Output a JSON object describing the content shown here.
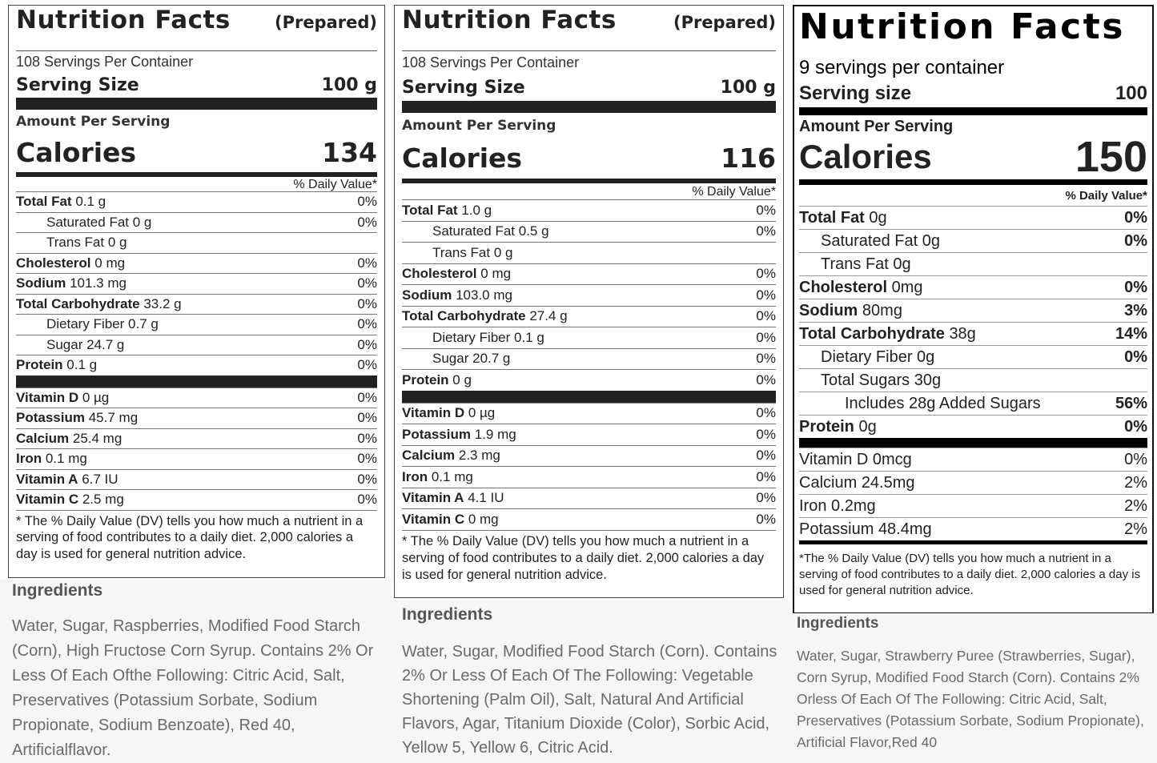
{
  "panels": [
    {
      "title": "Nutrition Facts",
      "qualifier": "(Prepared)",
      "servings": "108 Servings Per Container",
      "serving_size_label": "Serving Size",
      "serving_size_value": "100 g",
      "amount_per_serving": "Amount Per Serving",
      "calories_label": "Calories",
      "calories_value": 134,
      "dv_header": "% Daily Value*",
      "rows": [
        {
          "name": "Total Fat",
          "amount": "0.1 g",
          "dv": "0%",
          "sub": [
            {
              "name": "Saturated Fat",
              "amount": "0 g",
              "dv": "0%"
            },
            {
              "name": "Trans Fat",
              "amount": "0 g"
            }
          ]
        },
        {
          "name": "Cholesterol",
          "amount": "0 mg",
          "dv": "0%"
        },
        {
          "name": "Sodium",
          "amount": "101.3 mg",
          "dv": "0%"
        },
        {
          "name": "Total Carbohydrate",
          "amount": "33.2 g",
          "dv": "0%",
          "sub": [
            {
              "name": "Dietary Fiber",
              "amount": "0.7 g",
              "dv": "0%"
            },
            {
              "name": "Sugar",
              "amount": "24.7 g",
              "dv": "0%"
            }
          ]
        },
        {
          "name": "Protein",
          "amount": "0.1 g",
          "dv": "0%"
        }
      ],
      "vitamins": [
        {
          "name": "Vitamin D",
          "amount": "0 µg",
          "dv": "0%"
        },
        {
          "name": "Potassium",
          "amount": "45.7 mg",
          "dv": "0%"
        },
        {
          "name": "Calcium",
          "amount": "25.4 mg",
          "dv": "0%"
        },
        {
          "name": "Iron",
          "amount": "0.1 mg",
          "dv": "0%"
        },
        {
          "name": "Vitamin A",
          "amount": "6.7 IU",
          "dv": "0%"
        },
        {
          "name": "Vitamin C",
          "amount": "2.5 mg",
          "dv": "0%"
        }
      ],
      "footnote": "* The % Daily Value (DV) tells you how much a nutrient in a serving of food contributes to a daily diet. 2,000 calories a day is used for general nutrition advice.",
      "ingredients_heading": "Ingredients",
      "ingredients": "Water, Sugar, Raspberries, Modified Food Starch (Corn), High Fructose Corn Syrup. Contains 2% Or Less Of Each Ofthe Following: Citric Acid, Salt, Preservatives (Potassium Sorbate, Sodium Propionate, Sodium Benzoate), Red 40, Artificialflavor."
    },
    {
      "title": "Nutrition Facts",
      "qualifier": "(Prepared)",
      "servings": "108 Servings Per Container",
      "serving_size_label": "Serving Size",
      "serving_size_value": "100 g",
      "amount_per_serving": "Amount Per Serving",
      "calories_label": "Calories",
      "calories_value": 116,
      "dv_header": "% Daily Value*",
      "rows": [
        {
          "name": "Total Fat",
          "amount": "1.0 g",
          "dv": "0%",
          "sub": [
            {
              "name": "Saturated Fat",
              "amount": "0.5 g",
              "dv": "0%"
            },
            {
              "name": "Trans Fat",
              "amount": "0 g"
            }
          ]
        },
        {
          "name": "Cholesterol",
          "amount": "0 mg",
          "dv": "0%"
        },
        {
          "name": "Sodium",
          "amount": "103.0 mg",
          "dv": "0%"
        },
        {
          "name": "Total Carbohydrate",
          "amount": "27.4 g",
          "dv": "0%",
          "sub": [
            {
              "name": "Dietary Fiber",
              "amount": "0.1 g",
              "dv": "0%"
            },
            {
              "name": "Sugar",
              "amount": "20.7 g",
              "dv": "0%"
            }
          ]
        },
        {
          "name": "Protein",
          "amount": "0 g",
          "dv": "0%"
        }
      ],
      "vitamins": [
        {
          "name": "Vitamin D",
          "amount": "0 µg",
          "dv": "0%"
        },
        {
          "name": "Potassium",
          "amount": "1.9 mg",
          "dv": "0%"
        },
        {
          "name": "Calcium",
          "amount": "2.3 mg",
          "dv": "0%"
        },
        {
          "name": "Iron",
          "amount": "0.1 mg",
          "dv": "0%"
        },
        {
          "name": "Vitamin A",
          "amount": "4.1 IU",
          "dv": "0%"
        },
        {
          "name": "Vitamin C",
          "amount": "0 mg",
          "dv": "0%"
        }
      ],
      "footnote": "* The % Daily Value (DV) tells you how much a nutrient in a serving of food contributes to a daily diet. 2,000 calories a day is used for general nutrition advice.",
      "ingredients_heading": "Ingredients",
      "ingredients": "Water, Sugar, Modified Food Starch (Corn). Contains 2% Or Less Of Each Of The Following: Vegetable Shortening (Palm Oil), Salt, Natural And Artificial Flavors, Agar, Titanium Dioxide (Color), Sorbic Acid, Yellow 5, Yellow 6, Citric Acid."
    },
    {
      "title": "Nutrition Facts",
      "servings": "9 servings per container",
      "serving_size_label": "Serving size",
      "serving_size_value": "100",
      "amount_per_serving": "Amount Per Serving",
      "calories_label": "Calories",
      "calories_value": 150,
      "dv_header": "% Daily Value*",
      "rows": [
        {
          "name": "Total Fat",
          "amount": "0g",
          "dv": "0%",
          "sub": [
            {
              "name": "Saturated Fat",
              "amount": "0g",
              "dv": "0%"
            },
            {
              "name": "Trans Fat",
              "amount": "0g"
            }
          ]
        },
        {
          "name": "Cholesterol",
          "amount": "0mg",
          "dv": "0%"
        },
        {
          "name": "Sodium",
          "amount": "80mg",
          "dv": "3%"
        },
        {
          "name": "Total Carbohydrate",
          "amount": "38g",
          "dv": "14%",
          "sub": [
            {
              "name": "Dietary Fiber",
              "amount": "0g",
              "dv": "0%"
            },
            {
              "name": "Total Sugars",
              "amount": "30g",
              "sub": [
                {
                  "name": "Includes 28g Added Sugars",
                  "dv": "56%"
                }
              ]
            }
          ]
        },
        {
          "name": "Protein",
          "amount": "0g",
          "dv": "0%"
        }
      ],
      "vitamins": [
        {
          "name": "Vitamin D",
          "amount": "0mcg",
          "dv": "0%"
        },
        {
          "name": "Calcium",
          "amount": "24.5mg",
          "dv": "2%"
        },
        {
          "name": "Iron",
          "amount": "0.2mg",
          "dv": "2%"
        },
        {
          "name": "Potassium",
          "amount": "48.4mg",
          "dv": "2%"
        }
      ],
      "footnote": "*The % Daily Value (DV) tells you how much a nutrient in a serving of food contributes to a daily diet. 2,000 calories a day is used for general nutrition advice.",
      "ingredients_heading": "Ingredients",
      "ingredients": "Water, Sugar, Strawberry Puree (Strawberries, Sugar), Corn Syrup, Modified Food Starch (Corn). Contains 2% Orless Of Each Of The Following: Citric Acid, Salt, Preservatives (Potassium Sorbate, Sodium Propionate), Artificial Flavor,Red 40"
    }
  ]
}
